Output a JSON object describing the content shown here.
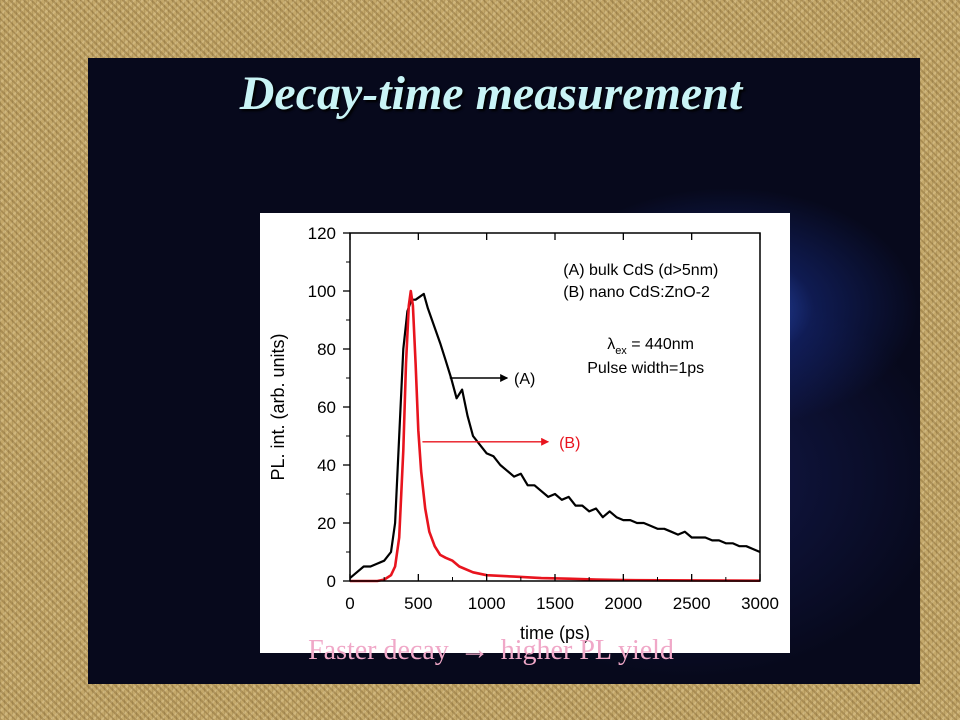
{
  "slide": {
    "title": "Decay-time measurement",
    "caption_before": "Faster decay",
    "caption_arrow": "→",
    "caption_after": "higher PL yield"
  },
  "colors": {
    "series_a": "#000000",
    "series_b": "#e8141e",
    "title": "#c9f4f6",
    "caption": "#f0a8c8"
  },
  "chart_data": {
    "type": "line",
    "xlabel": "time (ps)",
    "ylabel": "PL. int. (arb. units)",
    "xlim": [
      0,
      3000
    ],
    "ylim": [
      0,
      120
    ],
    "xticks": [
      0,
      500,
      1000,
      1500,
      2000,
      2500,
      3000
    ],
    "yticks": [
      0,
      20,
      40,
      60,
      80,
      100,
      120
    ],
    "grid": false,
    "legend": {
      "position": "top-right",
      "lines": [
        "(A) bulk CdS (d>5nm)",
        "(B) nano CdS:ZnO-2"
      ],
      "lambda_symbol": "λ",
      "lambda_sub": "ex",
      "lambda_value": "= 440nm",
      "pulse": "Pulse width=1ps"
    },
    "annotations": [
      {
        "label": "(A)",
        "series": "A",
        "arrow_from": [
          730,
          70
        ],
        "arrow_to": [
          1150,
          70
        ],
        "text_at": [
          1200,
          70
        ]
      },
      {
        "label": "(B)",
        "series": "B",
        "arrow_from": [
          530,
          48
        ],
        "arrow_to": [
          1450,
          48
        ],
        "text_at": [
          1530,
          48
        ]
      }
    ],
    "series": [
      {
        "name": "(A) bulk CdS (d>5nm)",
        "x": [
          0,
          50,
          100,
          150,
          200,
          250,
          300,
          330,
          360,
          390,
          420,
          450,
          480,
          510,
          540,
          570,
          600,
          630,
          660,
          700,
          740,
          780,
          820,
          860,
          900,
          950,
          1000,
          1050,
          1100,
          1150,
          1200,
          1250,
          1300,
          1350,
          1400,
          1450,
          1500,
          1550,
          1600,
          1650,
          1700,
          1750,
          1800,
          1850,
          1900,
          1950,
          2000,
          2050,
          2100,
          2150,
          2200,
          2250,
          2300,
          2350,
          2400,
          2450,
          2500,
          2550,
          2600,
          2650,
          2700,
          2750,
          2800,
          2850,
          2900,
          2950,
          3000
        ],
        "values": [
          1,
          3,
          5,
          5,
          6,
          7,
          10,
          20,
          50,
          80,
          93,
          97,
          97,
          98,
          99,
          94,
          90,
          86,
          82,
          76,
          70,
          63,
          66,
          57,
          50,
          47,
          44,
          43,
          40,
          38,
          36,
          37,
          33,
          33,
          31,
          29,
          30,
          28,
          29,
          26,
          26,
          24,
          25,
          22,
          24,
          22,
          21,
          21,
          20,
          20,
          19,
          18,
          18,
          17,
          16,
          17,
          15,
          15,
          15,
          14,
          14,
          13,
          13,
          12,
          12,
          11,
          10
        ]
      },
      {
        "name": "(B) nano CdS:ZnO-2",
        "x": [
          0,
          100,
          200,
          250,
          300,
          330,
          360,
          390,
          410,
          430,
          445,
          460,
          480,
          500,
          520,
          550,
          580,
          620,
          660,
          700,
          750,
          800,
          900,
          1000,
          1200,
          1400,
          1600,
          1800,
          2000,
          2500,
          3000
        ],
        "values": [
          0,
          0,
          0,
          0.5,
          2,
          5,
          15,
          45,
          75,
          95,
          100,
          95,
          75,
          52,
          38,
          25,
          17,
          12,
          9,
          8,
          7,
          5,
          3,
          2,
          1.5,
          1,
          0.8,
          0.5,
          0.3,
          0.2,
          0.1
        ]
      }
    ]
  }
}
